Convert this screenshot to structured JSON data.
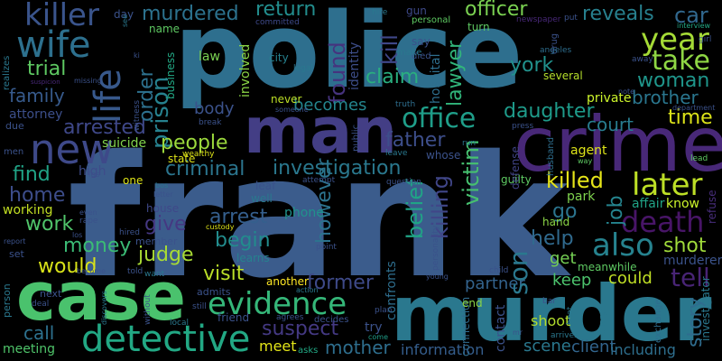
{
  "background": "#000000",
  "words": [
    {
      "text": "frank",
      "color": "#3b5c8c"
    },
    {
      "text": "police",
      "color": "#2e6f8e"
    },
    {
      "text": "murder",
      "color": "#2a788e"
    },
    {
      "text": "case",
      "color": "#4ac26d"
    },
    {
      "text": "man",
      "color": "#433e85"
    },
    {
      "text": "crime",
      "color": "#482878"
    },
    {
      "text": "detective",
      "color": "#22a884"
    },
    {
      "text": "evidence",
      "color": "#35b779"
    },
    {
      "text": "killer",
      "color": "#3a548c"
    },
    {
      "text": "new",
      "color": "#3e4989"
    },
    {
      "text": "wife",
      "color": "#2d708e"
    },
    {
      "text": "life",
      "color": "#38598c"
    },
    {
      "text": "office",
      "color": "#1f9e89"
    },
    {
      "text": "death",
      "color": "#481567"
    },
    {
      "text": "later",
      "color": "#bddf26"
    },
    {
      "text": "also",
      "color": "#26828e"
    },
    {
      "text": "year",
      "color": "#a5db36"
    },
    {
      "text": "take",
      "color": "#8fd744"
    },
    {
      "text": "murdered",
      "color": "#2c728e"
    },
    {
      "text": "return",
      "color": "#228d8d"
    },
    {
      "text": "officer",
      "color": "#7ad151"
    },
    {
      "text": "reveals",
      "color": "#27808e"
    },
    {
      "text": "car",
      "color": "#31688e"
    },
    {
      "text": "investigation",
      "color": "#2a788e"
    },
    {
      "text": "suspect",
      "color": "#443983"
    },
    {
      "text": "arrested",
      "color": "#3f4889"
    },
    {
      "text": "trial",
      "color": "#5ec962"
    },
    {
      "text": "family",
      "color": "#375a8c"
    },
    {
      "text": "prison",
      "color": "#26818e"
    },
    {
      "text": "order",
      "color": "#2d718e"
    },
    {
      "text": "found",
      "color": "#46337e"
    },
    {
      "text": "claim",
      "color": "#29af7f"
    },
    {
      "text": "kill",
      "color": "#3f4788"
    },
    {
      "text": "lawyer",
      "color": "#31b57b"
    },
    {
      "text": "woman",
      "color": "#1f968b"
    },
    {
      "text": "brother",
      "color": "#2a768e"
    },
    {
      "text": "time",
      "color": "#dce319"
    },
    {
      "text": "court",
      "color": "#287c8e"
    },
    {
      "text": "daughter",
      "color": "#1e9b8a"
    },
    {
      "text": "york",
      "color": "#21918c"
    },
    {
      "text": "father",
      "color": "#3d4e8a"
    },
    {
      "text": "becomes",
      "color": "#24868e"
    },
    {
      "text": "body",
      "color": "#3b528b"
    },
    {
      "text": "people",
      "color": "#9bd93c"
    },
    {
      "text": "criminal",
      "color": "#2b758e"
    },
    {
      "text": "find",
      "color": "#20a386"
    },
    {
      "text": "home",
      "color": "#3d4d8a"
    },
    {
      "text": "work",
      "color": "#50c46a"
    },
    {
      "text": "money",
      "color": "#3bbb75"
    },
    {
      "text": "would",
      "color": "#d8e219"
    },
    {
      "text": "call",
      "color": "#2d718e"
    },
    {
      "text": "judge",
      "color": "#a8db34"
    },
    {
      "text": "give",
      "color": "#453882"
    },
    {
      "text": "arrest",
      "color": "#355f8d"
    },
    {
      "text": "begin",
      "color": "#228c8d"
    },
    {
      "text": "visit",
      "color": "#bade28"
    },
    {
      "text": "former",
      "color": "#3e4a89"
    },
    {
      "text": "however",
      "color": "#2c738e"
    },
    {
      "text": "mother",
      "color": "#2e6e8e"
    },
    {
      "text": "belief",
      "color": "#20a486"
    },
    {
      "text": "victim",
      "color": "#46c06f"
    },
    {
      "text": "killing",
      "color": "#404688"
    },
    {
      "text": "killed",
      "color": "#e5e419"
    },
    {
      "text": "job",
      "color": "#25848e"
    },
    {
      "text": "go",
      "color": "#2b748e"
    },
    {
      "text": "help",
      "color": "#306a8e"
    },
    {
      "text": "tell",
      "color": "#482475"
    },
    {
      "text": "shot",
      "color": "#9fda3a"
    },
    {
      "text": "story",
      "color": "#2f6c8e"
    },
    {
      "text": "information",
      "color": "#355e8d"
    },
    {
      "text": "scene",
      "color": "#2a788e"
    },
    {
      "text": "keep",
      "color": "#4cc26c"
    },
    {
      "text": "partner",
      "color": "#33638d"
    },
    {
      "text": "shoot",
      "color": "#b2dd2d"
    },
    {
      "text": "client",
      "color": "#32658e"
    },
    {
      "text": "including",
      "color": "#2e6f8e"
    },
    {
      "text": "could",
      "color": "#c0df25"
    },
    {
      "text": "get",
      "color": "#75d054"
    },
    {
      "text": "murderer",
      "color": "#3b538b"
    },
    {
      "text": "meet",
      "color": "#e2e418"
    },
    {
      "text": "meeting",
      "color": "#4fc46a"
    },
    {
      "text": "suicide",
      "color": "#81d34d"
    },
    {
      "text": "high",
      "color": "#3e4c8a"
    },
    {
      "text": "working",
      "color": "#c2df23"
    },
    {
      "text": "attorney",
      "color": "#3c4f8a"
    },
    {
      "text": "phone",
      "color": "#20928c"
    },
    {
      "text": "connection",
      "color": "#2f6c8e"
    },
    {
      "text": "identity",
      "color": "#3d4e8a"
    },
    {
      "text": "involved",
      "color": "#8bd646"
    },
    {
      "text": "hospital",
      "color": "#2e6e8e"
    },
    {
      "text": "agent",
      "color": "#dde318"
    },
    {
      "text": "park",
      "color": "#7fd34e"
    },
    {
      "text": "affair",
      "color": "#20a386"
    },
    {
      "text": "know",
      "color": "#ccf52b"
    },
    {
      "text": "private",
      "color": "#ccf52b"
    },
    {
      "text": "several",
      "color": "#b5de2b"
    },
    {
      "text": "hand",
      "color": "#8bd646"
    },
    {
      "text": "end",
      "color": "#8bd646"
    },
    {
      "text": "son",
      "color": "#2a788e"
    },
    {
      "text": "contact",
      "color": "#3b528b"
    },
    {
      "text": "confronts",
      "color": "#2e6e8e"
    },
    {
      "text": "guilty",
      "color": "#5ec962"
    },
    {
      "text": "defense",
      "color": "#414487"
    },
    {
      "text": "house",
      "color": "#3f4889"
    },
    {
      "text": "state",
      "color": "#dde318"
    },
    {
      "text": "business",
      "color": "#22a884"
    },
    {
      "text": "city",
      "color": "#26818e"
    },
    {
      "text": "law",
      "color": "#7ad151"
    },
    {
      "text": "name",
      "color": "#5ec962"
    },
    {
      "text": "day",
      "color": "#3b528b"
    },
    {
      "text": "never",
      "color": "#bddf26"
    },
    {
      "text": "another",
      "color": "#fde725"
    },
    {
      "text": "learns",
      "color": "#26828e"
    },
    {
      "text": "friend",
      "color": "#3b528b"
    },
    {
      "text": "try",
      "color": "#3b528b"
    },
    {
      "text": "asks",
      "color": "#22a884"
    },
    {
      "text": "come",
      "color": "#1f9e89"
    },
    {
      "text": "arrives",
      "color": "#2a788e"
    },
    {
      "text": "beat",
      "color": "#2a788e"
    },
    {
      "text": "exchange",
      "color": "#2e6e8e"
    },
    {
      "text": "investigator",
      "color": "#2a788e"
    },
    {
      "text": "refuse",
      "color": "#472d7b"
    },
    {
      "text": "lead",
      "color": "#5ec962"
    },
    {
      "text": "girl",
      "color": "#3b528b"
    },
    {
      "text": "interview",
      "color": "#22a884"
    },
    {
      "text": "put",
      "color": "#3b528b"
    },
    {
      "text": "newspaper",
      "color": "#482878"
    },
    {
      "text": "hire",
      "color": "#2a788e"
    },
    {
      "text": "committed",
      "color": "#3e4989"
    },
    {
      "text": "personal",
      "color": "#5ec962"
    },
    {
      "text": "gun",
      "color": "#3e4989"
    },
    {
      "text": "turn",
      "color": "#5ec962"
    },
    {
      "text": "drug",
      "color": "#3b528b"
    },
    {
      "text": "angeles",
      "color": "#2e6e8e"
    },
    {
      "text": "away",
      "color": "#3b528b"
    },
    {
      "text": "died",
      "color": "#3b528b"
    },
    {
      "text": "make",
      "color": "#2a788e"
    },
    {
      "text": "legal",
      "color": "#2a788e"
    },
    {
      "text": "say",
      "color": "#3b528b"
    },
    {
      "text": "truth",
      "color": "#2e6e8e"
    },
    {
      "text": "someone",
      "color": "#3b528b"
    },
    {
      "text": "break",
      "color": "#3b528b"
    },
    {
      "text": "wealthy",
      "color": "#dde318"
    },
    {
      "text": "attempt",
      "color": "#3b528b"
    },
    {
      "text": "question",
      "color": "#3b528b"
    },
    {
      "text": "leave",
      "color": "#2a788e"
    },
    {
      "text": "whose",
      "color": "#3b528b"
    },
    {
      "text": "press",
      "color": "#3b528b"
    },
    {
      "text": "note",
      "color": "#3b528b"
    },
    {
      "text": "department",
      "color": "#3b528b"
    },
    {
      "text": "husband",
      "color": "#2e6e8e"
    },
    {
      "text": "way",
      "color": "#5ec962"
    },
    {
      "text": "public",
      "color": "#3b528b"
    },
    {
      "text": "run",
      "color": "#2a788e"
    },
    {
      "text": "los",
      "color": "#3b528b"
    },
    {
      "text": "leaf",
      "color": "#3b528b"
    },
    {
      "text": "well",
      "color": "#2a788e"
    },
    {
      "text": "one",
      "color": "#dde318"
    },
    {
      "text": "bos",
      "color": "#2a788e"
    },
    {
      "text": "letter",
      "color": "#3b528b"
    },
    {
      "text": "hired",
      "color": "#3b528b"
    },
    {
      "text": "custody",
      "color": "#dde318"
    },
    {
      "text": "member",
      "color": "#3b528b"
    },
    {
      "text": "admits",
      "color": "#3b528b"
    },
    {
      "text": "still",
      "color": "#3b528b"
    },
    {
      "text": "local",
      "color": "#2a788e"
    },
    {
      "text": "without",
      "color": "#3b528b"
    },
    {
      "text": "told",
      "color": "#3b528b"
    },
    {
      "text": "want",
      "color": "#2a788e"
    },
    {
      "text": "agrees",
      "color": "#3b528b"
    },
    {
      "text": "decides",
      "color": "#3b528b"
    },
    {
      "text": "point",
      "color": "#3b528b"
    },
    {
      "text": "plan",
      "color": "#3b528b"
    },
    {
      "text": "action",
      "color": "#2a788e"
    },
    {
      "text": "young",
      "color": "#3b528b"
    },
    {
      "text": "child",
      "color": "#3b528b"
    },
    {
      "text": "personality",
      "color": "#3b528b"
    },
    {
      "text": "bar",
      "color": "#3b528b"
    },
    {
      "text": "charge",
      "color": "#2a788e"
    },
    {
      "text": "meanwhile",
      "color": "#5ec962"
    },
    {
      "text": "next",
      "color": "#3b528b"
    },
    {
      "text": "deal",
      "color": "#3b528b"
    },
    {
      "text": "person",
      "color": "#2a788e"
    },
    {
      "text": "discovers",
      "color": "#2a788e"
    },
    {
      "text": "become",
      "color": "#3b528b"
    },
    {
      "text": "report",
      "color": "#3b528b"
    },
    {
      "text": "set",
      "color": "#3b528b"
    },
    {
      "text": "los",
      "color": "#3b528b"
    },
    {
      "text": "rape",
      "color": "#3b528b"
    },
    {
      "text": "even",
      "color": "#3b528b"
    },
    {
      "text": "due",
      "color": "#3b528b"
    },
    {
      "text": "men",
      "color": "#3b528b"
    },
    {
      "text": "realizes",
      "color": "#2a788e"
    },
    {
      "text": "suspicion",
      "color": "#482878"
    },
    {
      "text": "missing",
      "color": "#3b528b"
    },
    {
      "text": "ki",
      "color": "#3b528b"
    },
    {
      "text": "see",
      "color": "#2a788e"
    },
    {
      "text": "witness",
      "color": "#3b528b"
    },
    {
      "text": "mr",
      "color": "#3b528b"
    }
  ]
}
